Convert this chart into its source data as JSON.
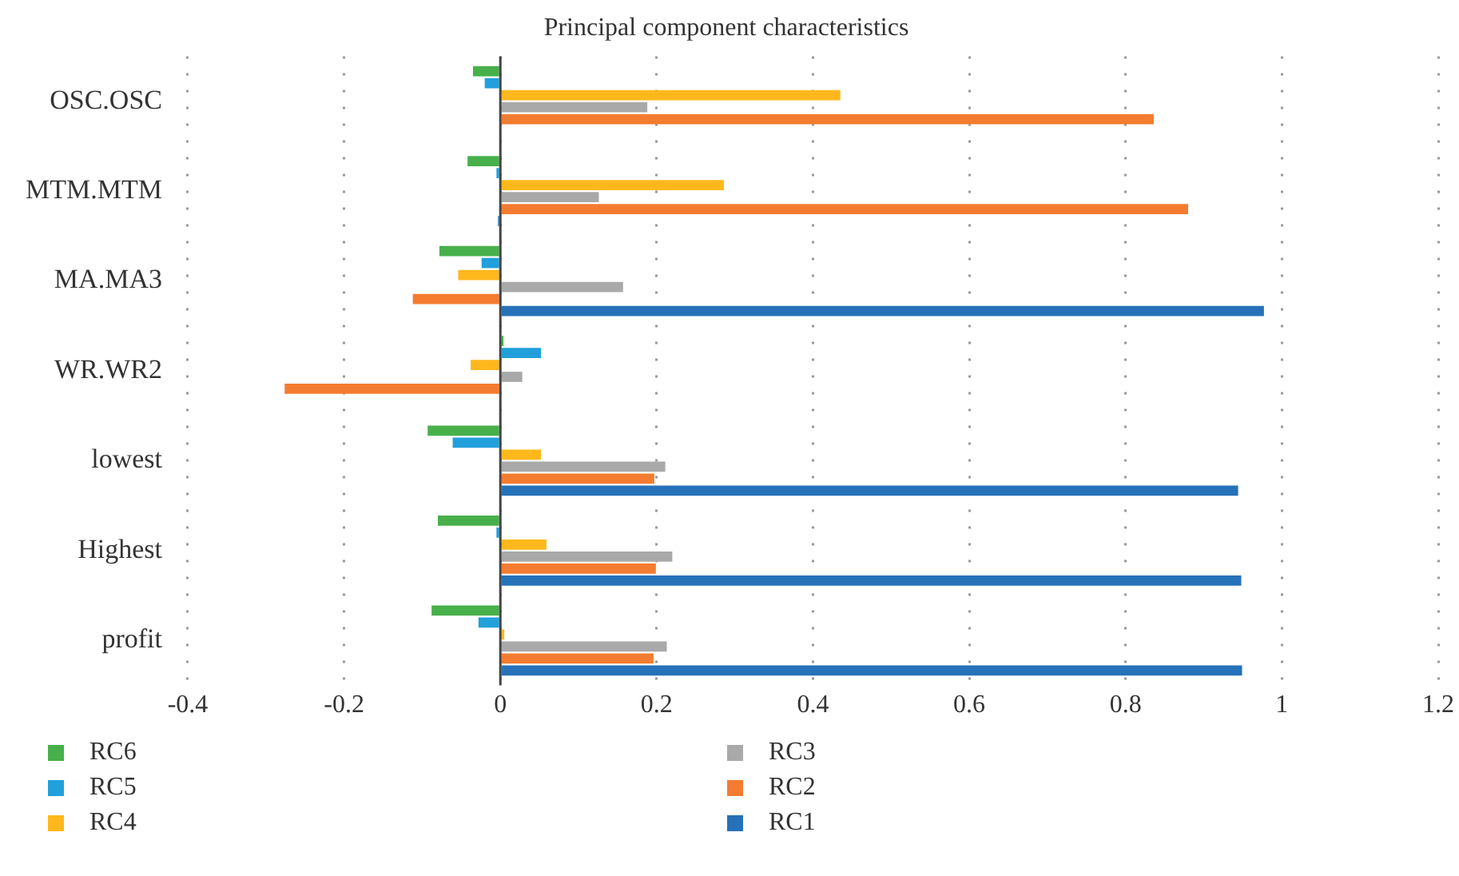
{
  "chart_data": {
    "type": "bar",
    "orientation": "horizontal",
    "title": "Principal component characteristics",
    "categories": [
      "OSC.OSC",
      "MTM.MTM",
      "MA.MA3",
      "WR.WR2",
      "lowest",
      "Highest",
      "profit"
    ],
    "series": [
      {
        "name": "RC6",
        "color": "#47b04b",
        "values": [
          -0.035,
          -0.042,
          -0.078,
          0.004,
          -0.093,
          -0.08,
          -0.088
        ]
      },
      {
        "name": "RC5",
        "color": "#21a0db",
        "values": [
          -0.02,
          -0.005,
          -0.024,
          0.052,
          -0.061,
          -0.005,
          -0.028
        ]
      },
      {
        "name": "RC4",
        "color": "#ffb81c",
        "values": [
          0.435,
          0.286,
          -0.054,
          -0.038,
          0.052,
          0.059,
          0.005
        ]
      },
      {
        "name": "RC3",
        "color": "#a9a9a9",
        "values": [
          0.188,
          0.126,
          0.157,
          0.028,
          0.211,
          0.22,
          0.213
        ]
      },
      {
        "name": "RC2",
        "color": "#f47c30",
        "values": [
          0.836,
          0.88,
          -0.112,
          -0.276,
          0.197,
          0.199,
          0.196
        ]
      },
      {
        "name": "RC1",
        "color": "#2672b9",
        "values": [
          0,
          -0.003,
          0.977,
          0,
          0.944,
          0.948,
          0.949
        ]
      }
    ],
    "xlim": [
      -0.4,
      1.2
    ],
    "xticks": [
      -0.4,
      -0.2,
      0,
      0.2,
      0.4,
      0.6,
      0.8,
      1,
      1.2
    ],
    "grid": "x",
    "legend": "bottom"
  }
}
